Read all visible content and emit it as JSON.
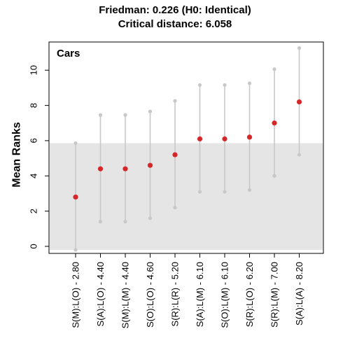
{
  "header": {
    "title_line1": "Friedman: 0.226 (H0: Identical)",
    "title_line2": "Critical distance: 6.058"
  },
  "chart_data": {
    "type": "scatter",
    "title": "Friedman: 0.226 (H0: Identical)",
    "subtitle": "Critical distance: 6.058",
    "panel_label": "Cars",
    "ylabel": "Mean Ranks",
    "xlabel": "",
    "ylim": [
      -0.4,
      11.6
    ],
    "yticks": [
      0,
      2,
      4,
      6,
      8,
      10
    ],
    "grid": false,
    "critical_distance": 6.058,
    "critical_band": [
      -0.2,
      5.858
    ],
    "categories": [
      "S(M):L(O) - 2.80",
      "S(A):L(O) - 4.40",
      "S(M):L(M) - 4.40",
      "S(O):L(O) - 4.60",
      "S(R):L(R) - 5.20",
      "S(A):L(M) - 6.10",
      "S(O):L(M) - 6.10",
      "S(R):L(O) - 6.20",
      "S(R):L(M) - 7.00",
      "S(A):L(A) - 8.20"
    ],
    "series": [
      {
        "values": [
          2.8,
          4.4,
          4.4,
          4.6,
          5.2,
          6.1,
          6.1,
          6.2,
          7.0,
          8.2
        ]
      }
    ],
    "interval_low": [
      -0.2,
      1.4,
      1.4,
      1.6,
      2.2,
      3.1,
      3.1,
      3.2,
      4.0,
      5.2
    ],
    "interval_high": [
      5.858,
      7.458,
      7.458,
      7.658,
      8.258,
      9.158,
      9.158,
      9.258,
      10.058,
      11.258
    ],
    "colors": {
      "mean_point": "#d62728",
      "interval": "#c8c8c8",
      "band": "#e5e5e5",
      "axis": "#000000"
    }
  }
}
